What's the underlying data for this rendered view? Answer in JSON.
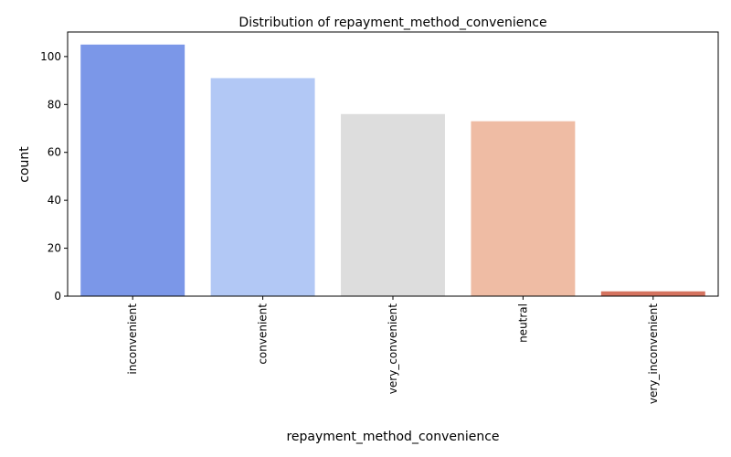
{
  "chart_data": {
    "type": "bar",
    "title": "Distribution of repayment_method_convenience",
    "xlabel": "repayment_method_convenience",
    "ylabel": "count",
    "categories": [
      "inconvenient",
      "convenient",
      "very_convenient",
      "neutral",
      "very_inconvenient"
    ],
    "values": [
      105,
      91,
      76,
      73,
      2
    ],
    "colors": [
      "#7b97e8",
      "#b2c8f5",
      "#dddddd",
      "#efbca4",
      "#d5735f"
    ],
    "ylim": [
      0,
      110.25
    ],
    "yticks": [
      0,
      20,
      40,
      60,
      80,
      100
    ],
    "grid": false,
    "legend": "none"
  }
}
